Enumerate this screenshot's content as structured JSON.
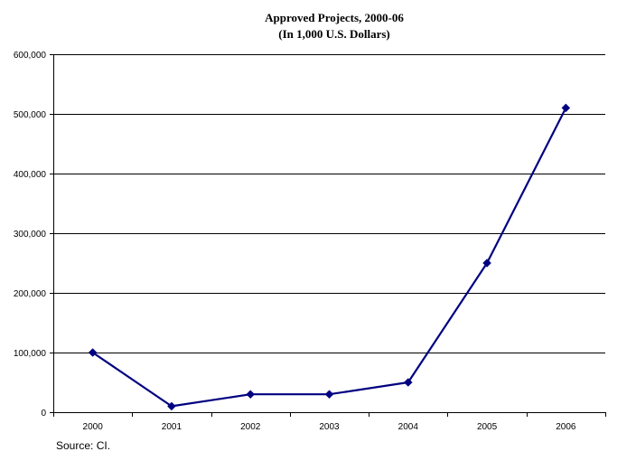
{
  "chart_data": {
    "type": "line",
    "title": "Approved Projects, 2000-06",
    "subtitle": "(In 1,000 U.S. Dollars)",
    "xlabel": "",
    "ylabel": "",
    "categories": [
      "2000",
      "2001",
      "2002",
      "2003",
      "2004",
      "2005",
      "2006"
    ],
    "series": [
      {
        "values": [
          100000,
          10000,
          30000,
          30000,
          50000,
          250000,
          510000
        ]
      }
    ],
    "ylim": [
      0,
      600000
    ],
    "yticks": [
      0,
      100000,
      200000,
      300000,
      400000,
      500000,
      600000
    ],
    "ytick_labels": [
      "0",
      "100,000",
      "200,000",
      "300,000",
      "400,000",
      "500,000",
      "600,000"
    ],
    "grid": true,
    "legend": "none",
    "colors": {
      "series_line": "#000080",
      "marker": "#000080",
      "grid": "#000000"
    },
    "marker": "diamond"
  },
  "footer": {
    "source": "Source: CI."
  }
}
